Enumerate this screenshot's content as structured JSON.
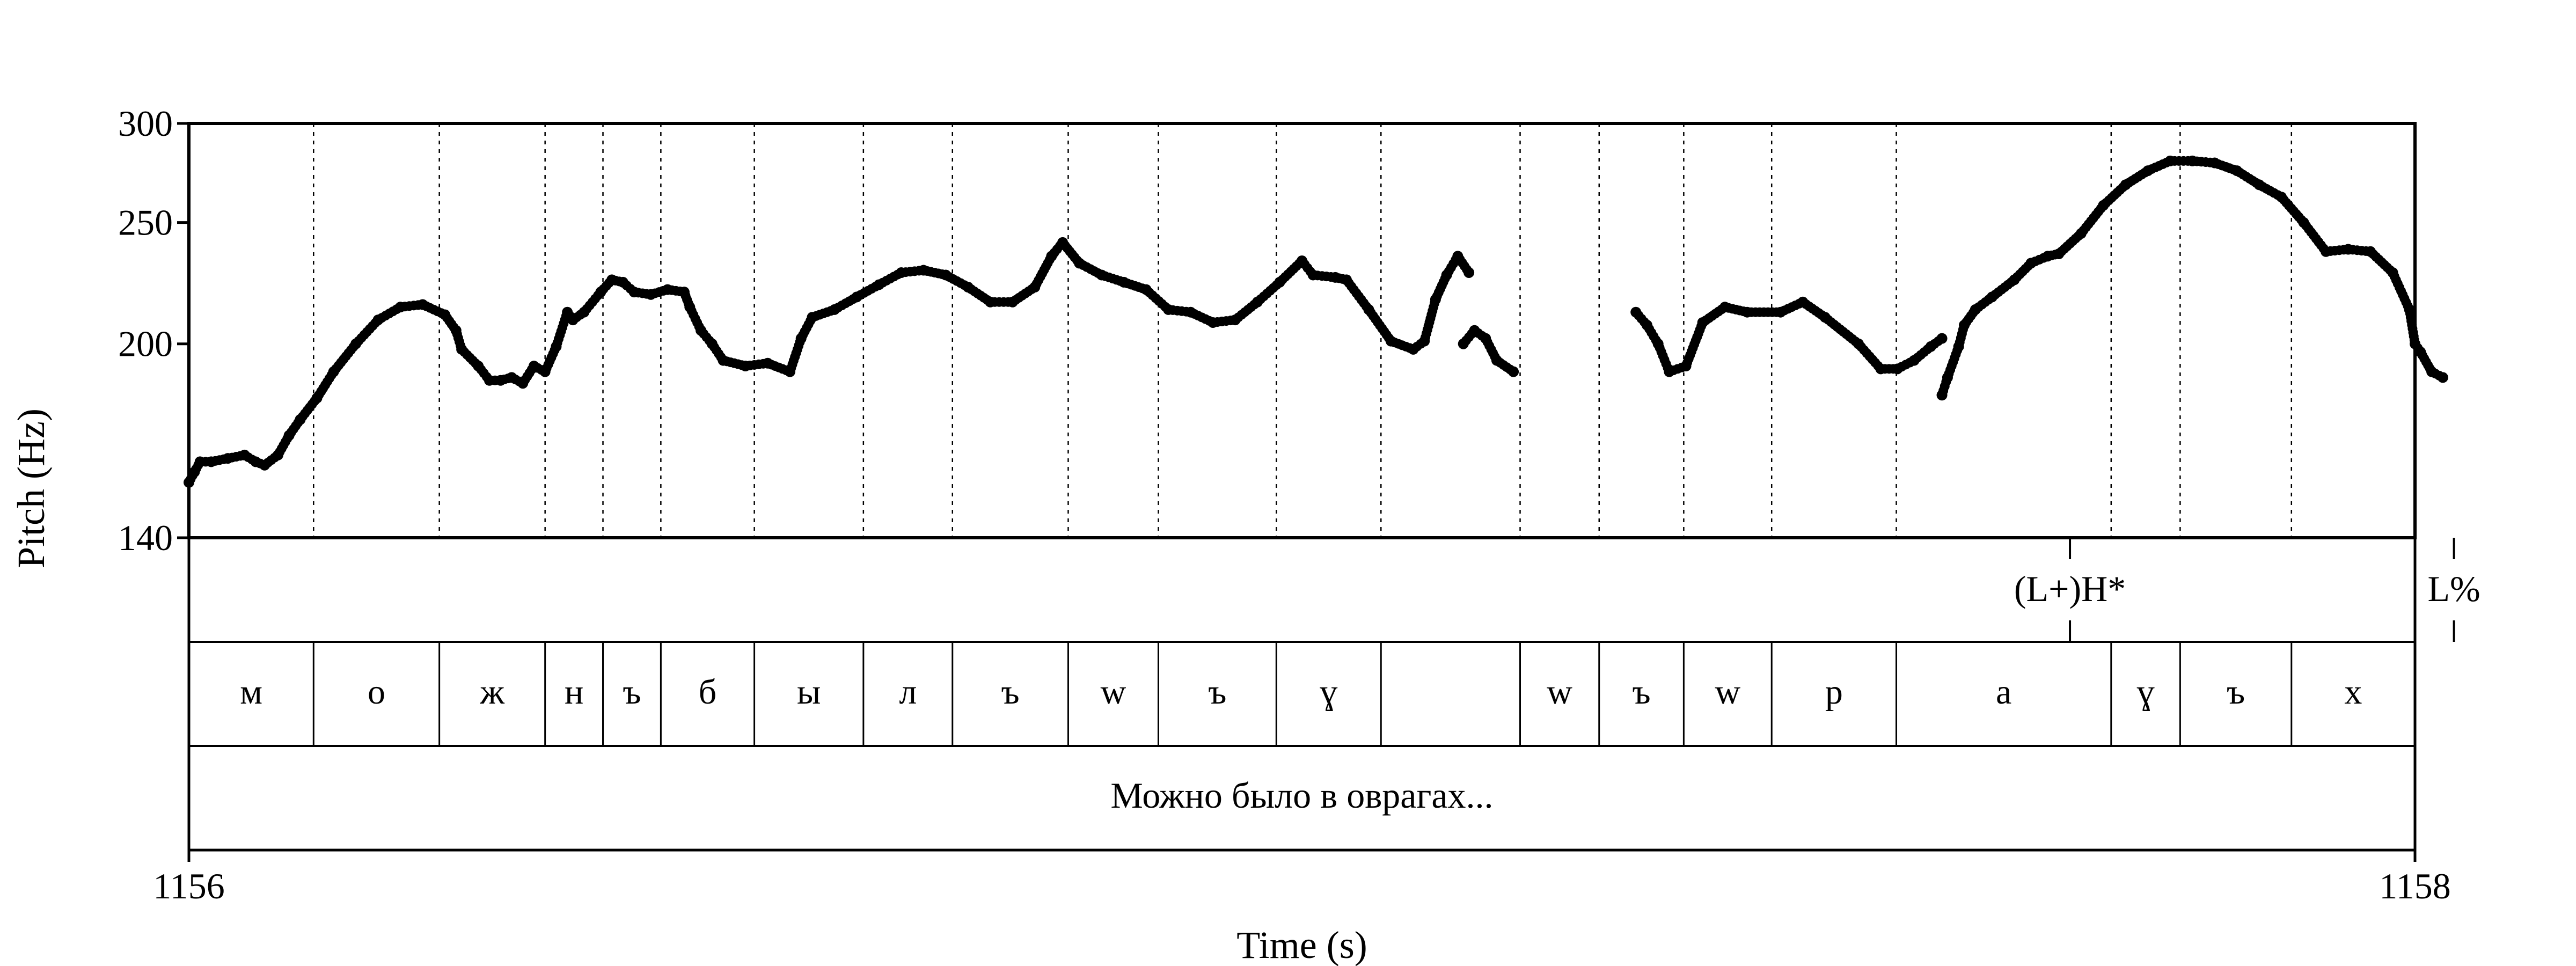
{
  "chart_data": {
    "type": "line",
    "xlabel": "Time (s)",
    "ylabel": "Pitch (Hz)",
    "xlim": [
      1156,
      1158
    ],
    "ylim": [
      140,
      300
    ],
    "x_tick_labels": [
      "1156",
      "1158"
    ],
    "y_ticks": [
      140,
      200,
      250,
      300
    ],
    "grid": false,
    "series": [
      {
        "segments": [
          [
            [
              1156.0,
              155
            ],
            [
              1156.005,
              158
            ],
            [
              1156.01,
              161
            ],
            [
              1156.02,
              161
            ],
            [
              1156.035,
              162
            ],
            [
              1156.05,
              163
            ],
            [
              1156.06,
              161
            ],
            [
              1156.068,
              160
            ],
            [
              1156.08,
              163
            ],
            [
              1156.09,
              169
            ],
            [
              1156.1,
              174
            ],
            [
              1156.115,
              181
            ],
            [
              1156.13,
              190
            ],
            [
              1156.15,
              200
            ],
            [
              1156.17,
              209
            ],
            [
              1156.19,
              214
            ],
            [
              1156.21,
              215
            ],
            [
              1156.23,
              211
            ],
            [
              1156.24,
              205
            ],
            [
              1156.245,
              198
            ],
            [
              1156.26,
              192
            ],
            [
              1156.27,
              187
            ],
            [
              1156.28,
              187
            ],
            [
              1156.29,
              188
            ],
            [
              1156.3,
              186
            ],
            [
              1156.31,
              192
            ],
            [
              1156.32,
              190
            ],
            [
              1156.33,
              199
            ],
            [
              1156.34,
              212
            ],
            [
              1156.345,
              209
            ],
            [
              1156.355,
              212
            ],
            [
              1156.37,
              220
            ],
            [
              1156.38,
              225
            ],
            [
              1156.39,
              224
            ],
            [
              1156.4,
              220
            ],
            [
              1156.415,
              219
            ],
            [
              1156.43,
              221
            ],
            [
              1156.445,
              220
            ],
            [
              1156.45,
              214
            ],
            [
              1156.46,
              205
            ],
            [
              1156.47,
              200
            ],
            [
              1156.48,
              194
            ],
            [
              1156.5,
              192
            ],
            [
              1156.52,
              193
            ],
            [
              1156.54,
              190
            ],
            [
              1156.55,
              202
            ],
            [
              1156.56,
              210
            ],
            [
              1156.58,
              213
            ],
            [
              1156.6,
              218
            ],
            [
              1156.62,
              223
            ],
            [
              1156.64,
              228
            ],
            [
              1156.66,
              229
            ],
            [
              1156.68,
              227
            ],
            [
              1156.7,
              222
            ],
            [
              1156.72,
              216
            ],
            [
              1156.74,
              216
            ],
            [
              1156.76,
              222
            ],
            [
              1156.775,
              235
            ],
            [
              1156.785,
              241
            ],
            [
              1156.8,
              232
            ],
            [
              1156.82,
              227
            ],
            [
              1156.84,
              224
            ],
            [
              1156.86,
              221
            ],
            [
              1156.88,
              213
            ],
            [
              1156.9,
              212
            ],
            [
              1156.92,
              208
            ],
            [
              1156.94,
              209
            ],
            [
              1156.96,
              216
            ],
            [
              1156.98,
              224
            ],
            [
              1157.0,
              233
            ],
            [
              1157.01,
              227
            ],
            [
              1157.03,
              226
            ],
            [
              1157.04,
              225
            ],
            [
              1157.06,
              213
            ],
            [
              1157.08,
              201
            ],
            [
              1157.1,
              198
            ],
            [
              1157.11,
              201
            ],
            [
              1157.12,
              217
            ],
            [
              1157.13,
              227
            ],
            [
              1157.14,
              235
            ],
            [
              1157.15,
              228
            ]
          ],
          [
            [
              1157.145,
              200
            ],
            [
              1157.155,
              205
            ],
            [
              1157.165,
              202
            ],
            [
              1157.175,
              194
            ],
            [
              1157.19,
              190
            ]
          ],
          [
            [
              1157.3,
              212
            ],
            [
              1157.31,
              207
            ],
            [
              1157.32,
              200
            ],
            [
              1157.33,
              190
            ],
            [
              1157.345,
              192
            ],
            [
              1157.36,
              208
            ],
            [
              1157.38,
              214
            ],
            [
              1157.4,
              212
            ],
            [
              1157.43,
              212
            ],
            [
              1157.45,
              216
            ],
            [
              1157.47,
              210
            ],
            [
              1157.5,
              200
            ],
            [
              1157.52,
              191
            ],
            [
              1157.535,
              191
            ],
            [
              1157.55,
              194
            ],
            [
              1157.565,
              199
            ],
            [
              1157.575,
              202
            ]
          ],
          [
            [
              1157.575,
              182
            ],
            [
              1157.58,
              188
            ],
            [
              1157.59,
              199
            ],
            [
              1157.595,
              207
            ],
            [
              1157.605,
              213
            ],
            [
              1157.62,
              218
            ],
            [
              1157.64,
              225
            ],
            [
              1157.655,
              232
            ],
            [
              1157.67,
              235
            ],
            [
              1157.68,
              236
            ],
            [
              1157.7,
              245
            ],
            [
              1157.72,
              258
            ],
            [
              1157.74,
              268
            ],
            [
              1157.76,
              275
            ],
            [
              1157.78,
              280
            ],
            [
              1157.8,
              280
            ],
            [
              1157.82,
              279
            ],
            [
              1157.84,
              275
            ],
            [
              1157.86,
              268
            ],
            [
              1157.88,
              262
            ],
            [
              1157.9,
              250
            ],
            [
              1157.92,
              237
            ],
            [
              1157.94,
              238
            ],
            [
              1157.96,
              237
            ],
            [
              1157.98,
              228
            ],
            [
              1157.995,
              213
            ],
            [
              1158.0,
              200
            ],
            [
              1158.005,
              197
            ],
            [
              1158.015,
              190
            ],
            [
              1158.025,
              188
            ]
          ]
        ]
      }
    ],
    "tiers": [
      {
        "name": "tones",
        "intervals": [
          {
            "t": 1157.69,
            "label": "(L+)H*"
          },
          {
            "t": 1158.035,
            "label": "L%"
          }
        ]
      },
      {
        "name": "segments",
        "intervals": [
          {
            "start": 1156.0,
            "end": 1156.112,
            "label": "м"
          },
          {
            "start": 1156.112,
            "end": 1156.225,
            "label": "о"
          },
          {
            "start": 1156.225,
            "end": 1156.32,
            "label": "ж"
          },
          {
            "start": 1156.32,
            "end": 1156.372,
            "label": "н"
          },
          {
            "start": 1156.372,
            "end": 1156.424,
            "label": "ъ"
          },
          {
            "start": 1156.424,
            "end": 1156.508,
            "label": "б"
          },
          {
            "start": 1156.508,
            "end": 1156.606,
            "label": "ы"
          },
          {
            "start": 1156.606,
            "end": 1156.686,
            "label": "л"
          },
          {
            "start": 1156.686,
            "end": 1156.79,
            "label": "ъ"
          },
          {
            "start": 1156.79,
            "end": 1156.871,
            "label": "w"
          },
          {
            "start": 1156.871,
            "end": 1156.977,
            "label": "ъ"
          },
          {
            "start": 1156.977,
            "end": 1157.071,
            "label": "ɣ"
          },
          {
            "start": 1157.071,
            "end": 1157.196,
            "label": ""
          },
          {
            "start": 1157.196,
            "end": 1157.267,
            "label": "w"
          },
          {
            "start": 1157.267,
            "end": 1157.343,
            "label": "ъ"
          },
          {
            "start": 1157.343,
            "end": 1157.422,
            "label": "w"
          },
          {
            "start": 1157.422,
            "end": 1157.534,
            "label": "р"
          },
          {
            "start": 1157.534,
            "end": 1157.727,
            "label": "а"
          },
          {
            "start": 1157.727,
            "end": 1157.789,
            "label": "ɣ"
          },
          {
            "start": 1157.789,
            "end": 1157.889,
            "label": "ъ"
          },
          {
            "start": 1157.889,
            "end": 1158.0,
            "label": "х"
          }
        ]
      },
      {
        "name": "utterance",
        "intervals": [
          {
            "start": 1156.0,
            "end": 1158.0,
            "label": "Можно было в оврагах..."
          }
        ]
      }
    ]
  }
}
